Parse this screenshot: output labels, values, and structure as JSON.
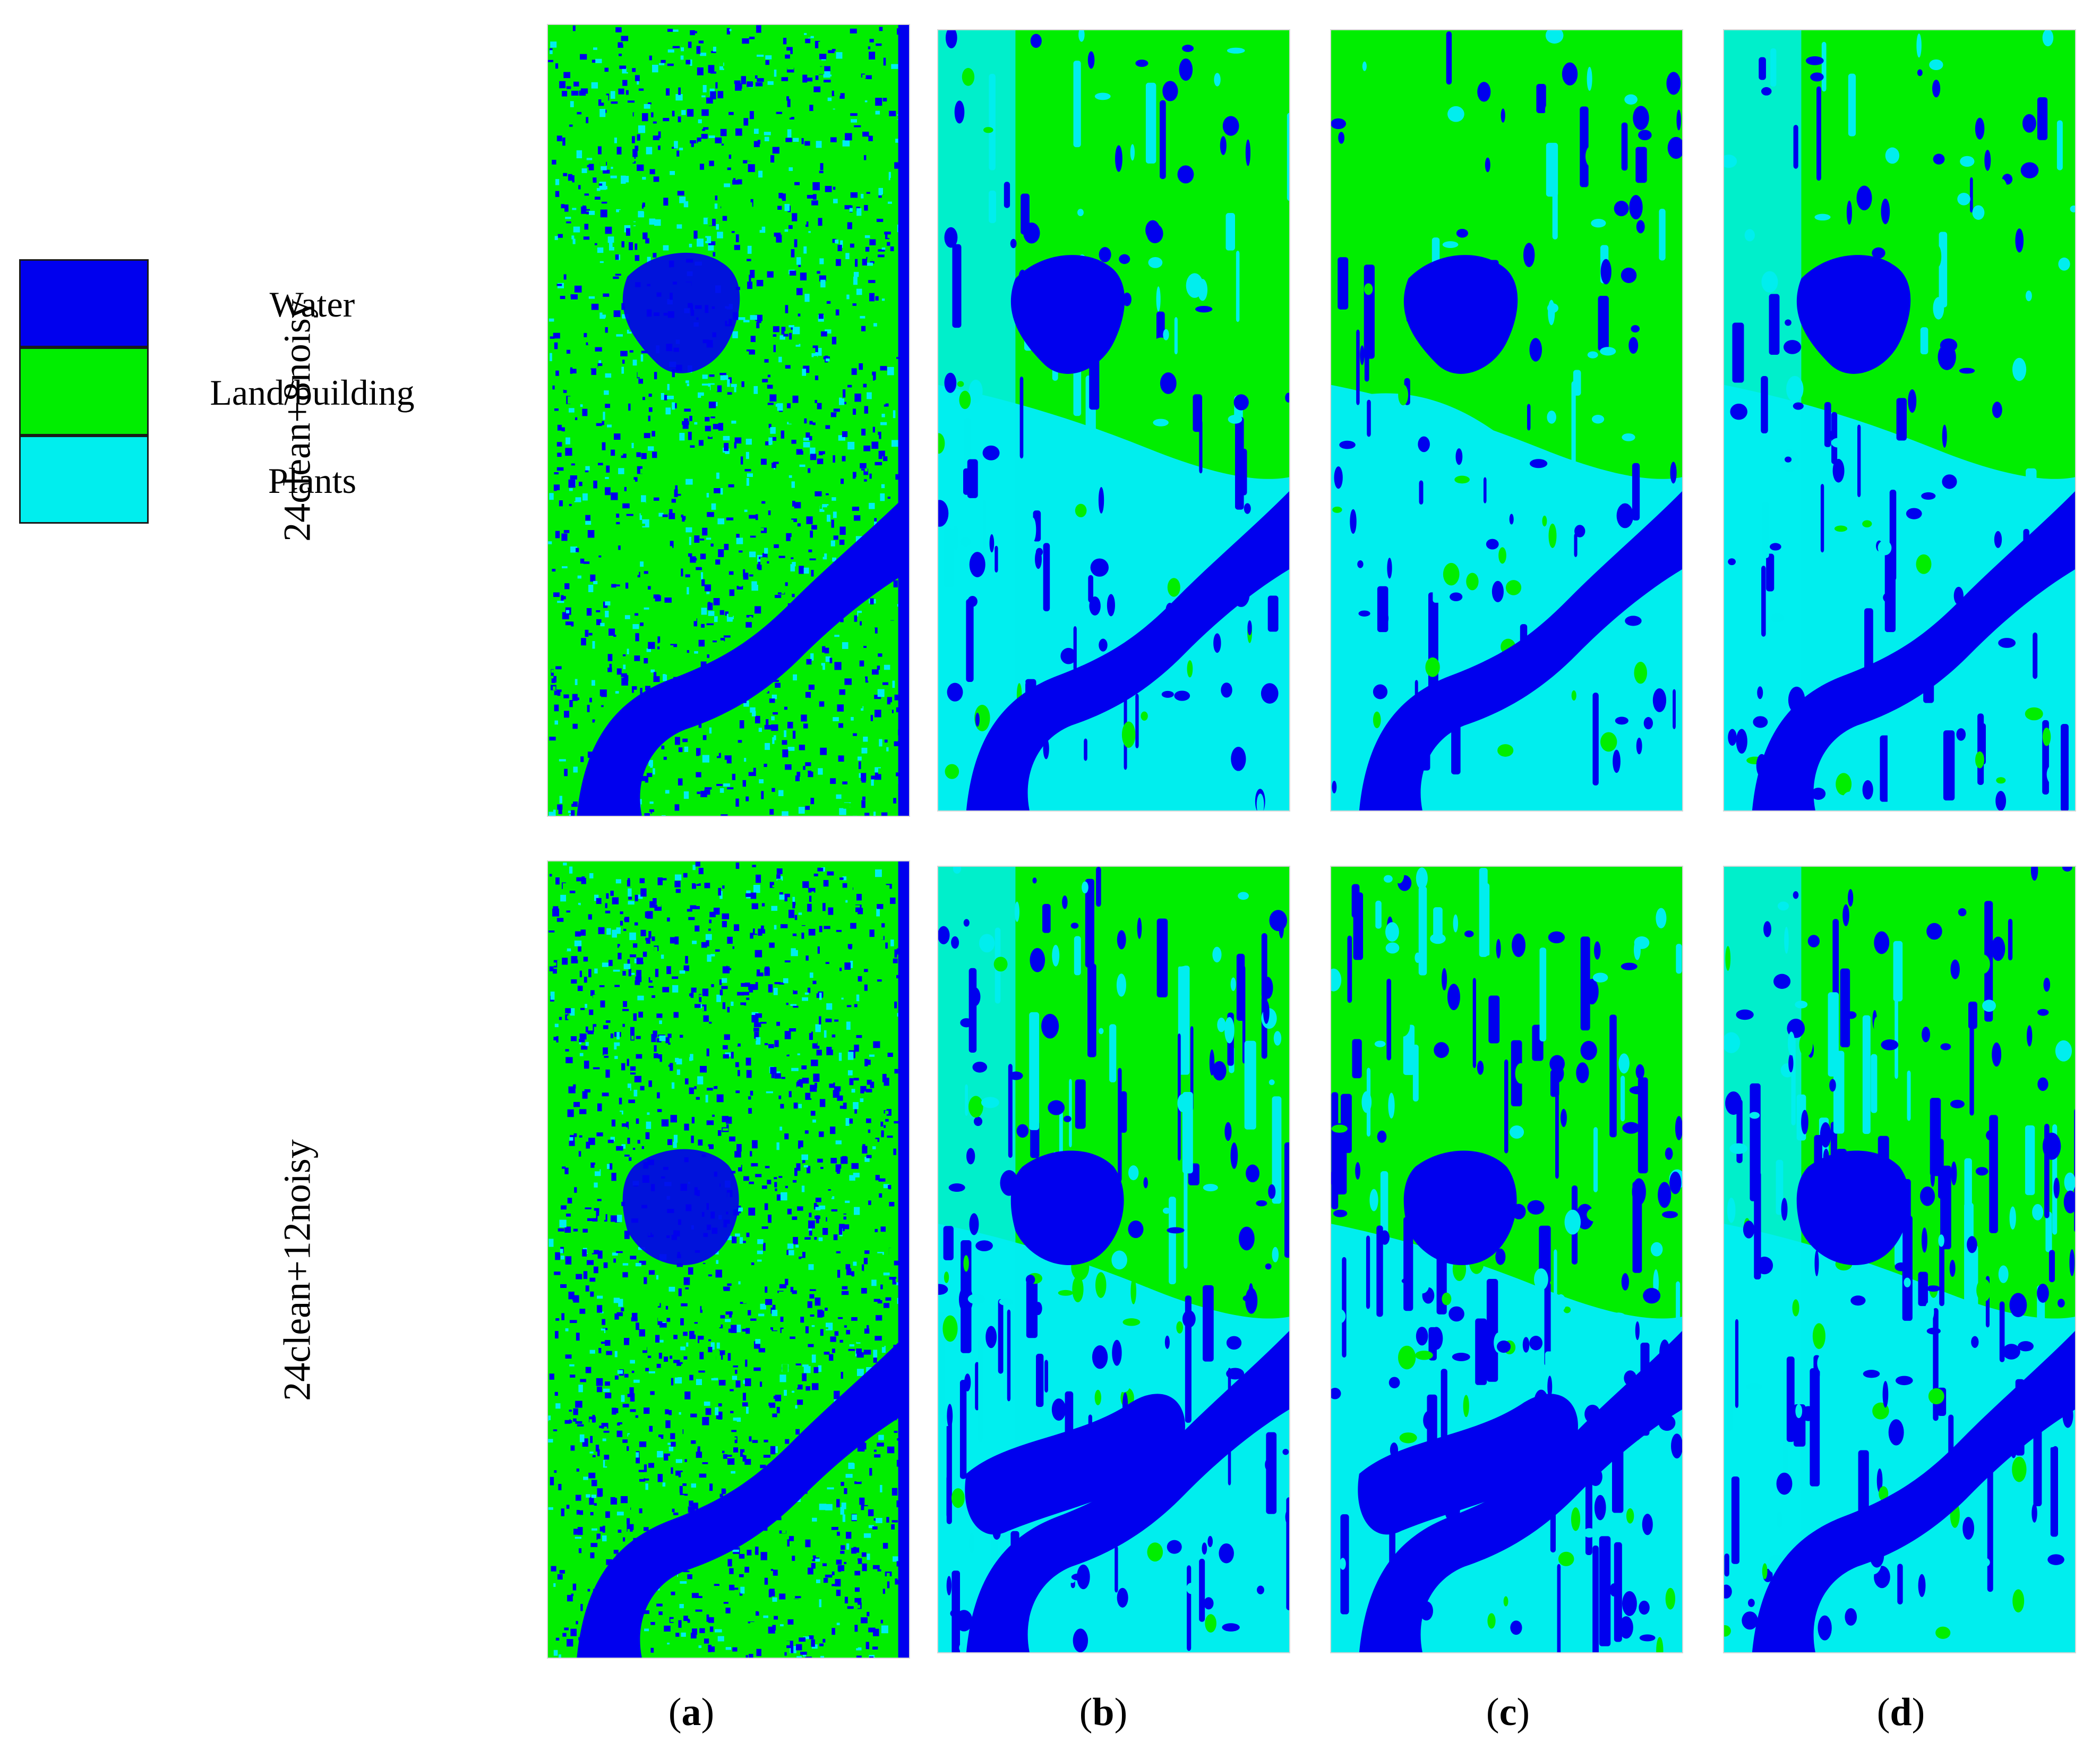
{
  "legend": {
    "items": [
      {
        "label": "Water",
        "color": "#0000ee"
      },
      {
        "label": "Land/building",
        "color": "#00ee00"
      },
      {
        "label": "Plants",
        "color": "#00eeee"
      }
    ]
  },
  "rows": [
    {
      "label": "24clean+8noisy"
    },
    {
      "label": "24clean+12noisy"
    }
  ],
  "columns": [
    {
      "letter": "a"
    },
    {
      "letter": "b"
    },
    {
      "letter": "c"
    },
    {
      "letter": "d"
    }
  ],
  "colors": {
    "water": "#0000ee",
    "land": "#00ee00",
    "plants": "#00eeee"
  }
}
